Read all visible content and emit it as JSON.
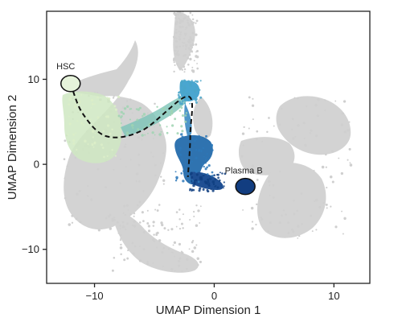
{
  "chart_data": {
    "type": "scatter",
    "xlabel": "UMAP Dimension 1",
    "ylabel": "UMAP Dimension 2",
    "xlim": [
      -14,
      13
    ],
    "ylim": [
      -14,
      18
    ],
    "xticks": [
      -10,
      0,
      10
    ],
    "yticks": [
      -10,
      0,
      10
    ],
    "xtick_labels": [
      "−10",
      "0",
      "10"
    ],
    "ytick_labels": [
      "−10",
      "0",
      "10"
    ],
    "grid": false,
    "background_cells_color": "#d3d3d3",
    "trajectory_color_scale": [
      "#dcefc8",
      "#9fd3b2",
      "#4aa6c9",
      "#2d78b8",
      "#0f3e80"
    ],
    "trajectory_path": {
      "style": "dashed",
      "x": [
        -12,
        -11,
        -9,
        -6,
        -2.2,
        -2,
        -2.2
      ],
      "y": [
        9.5,
        6,
        3.3,
        4,
        8,
        3.5,
        -1.5
      ]
    },
    "annotations": [
      {
        "label": "HSC",
        "x": -12,
        "y": 9.5,
        "marker_fill": "#e6f3db"
      },
      {
        "label": "Plasma B",
        "x": 2.6,
        "y": -2.6,
        "marker_fill": "#123d80"
      }
    ]
  }
}
